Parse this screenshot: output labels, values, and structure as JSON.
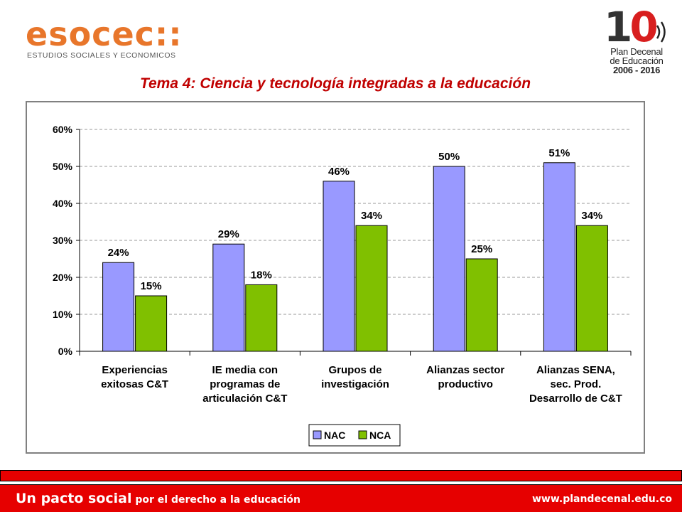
{
  "header": {
    "esocec_logo": "esocec::",
    "esocec_tagline": "ESTUDIOS SOCIALES Y ECONOMICOS",
    "plan_logo_number": "10",
    "plan_logo_lines": [
      "Plan Decenal",
      "de Educación",
      "2006 - 2016"
    ],
    "title": "Tema 4: Ciencia y tecnología integradas a la educación"
  },
  "colors": {
    "title": "#c00000",
    "nac": "#9999ff",
    "nca": "#80c000",
    "footer": "#e60000",
    "esocec_orange": "#e8762b"
  },
  "chart_data": {
    "type": "bar",
    "categories": [
      [
        "Experiencias",
        "exitosas C&T"
      ],
      [
        "IE media con",
        "programas de",
        "articulación C&T"
      ],
      [
        "Grupos de",
        "investigación"
      ],
      [
        "Alianzas sector",
        "productivo"
      ],
      [
        "Alianzas SENA,",
        "sec. Prod.",
        "Desarrollo de C&T"
      ]
    ],
    "series": [
      {
        "name": "NAC",
        "values": [
          24,
          29,
          46,
          50,
          51
        ],
        "labels": [
          "24%",
          "29%",
          "46%",
          "50%",
          "51%"
        ],
        "color": "#9999ff"
      },
      {
        "name": "NCA",
        "values": [
          15,
          18,
          34,
          25,
          34
        ],
        "labels": [
          "15%",
          "18%",
          "34%",
          "25%",
          "34%"
        ],
        "color": "#80c000"
      }
    ],
    "y_ticks": [
      "0%",
      "10%",
      "20%",
      "30%",
      "40%",
      "50%",
      "60%"
    ],
    "ylim": [
      0,
      60
    ],
    "grid": true,
    "legend_position": "bottom-center",
    "title": "",
    "xlabel": "",
    "ylabel": ""
  },
  "footer": {
    "slogan_main": "Un pacto social",
    "slogan_rest": " por el derecho a la educación",
    "url": "www.plandecenal.edu.co"
  }
}
